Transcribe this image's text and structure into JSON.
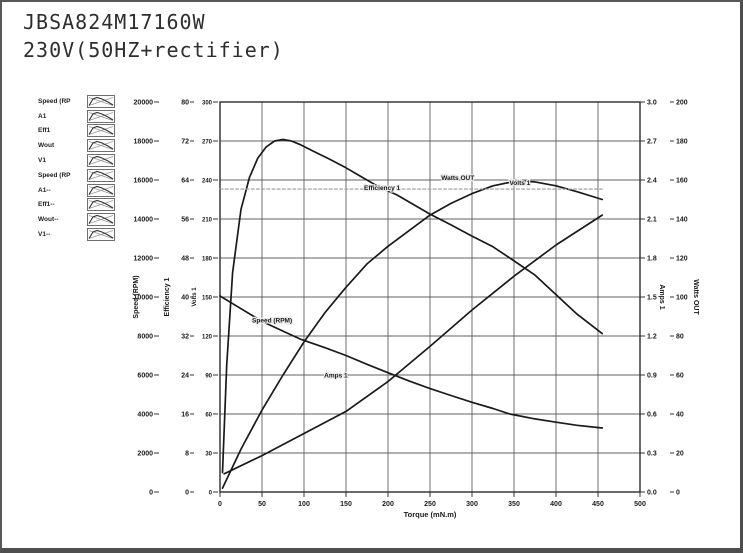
{
  "window": {
    "title_line1": "JBSA824M17160W",
    "title_line2": "230V(50HZ+rectifier)"
  },
  "legend": {
    "items": [
      {
        "label": "Speed (RP"
      },
      {
        "label": "A1"
      },
      {
        "label": "Eff1"
      },
      {
        "label": "Wout"
      },
      {
        "label": "V1"
      },
      {
        "label": "Speed (RP"
      },
      {
        "label": "A1--"
      },
      {
        "label": "Eff1--"
      },
      {
        "label": "Wout--"
      },
      {
        "label": "V1--"
      }
    ]
  },
  "colors": {
    "frame": "#4e4e4e",
    "grid": "#606060",
    "plot_border": "#2a2a2a",
    "curve": "#1a1a1a",
    "volts_line": "#9a9a9a",
    "tick_text": "#1a1a1a"
  },
  "chart_data": {
    "type": "line",
    "title": "",
    "xlabel": "Torque (mN.m)",
    "grid": true,
    "x_axis": {
      "min": 0,
      "max": 500,
      "step": 50,
      "decimals": 0
    },
    "y_axes_left": [
      {
        "name": "Speed (RPM)",
        "min": 0,
        "max": 20000,
        "step": 2000,
        "decimals": 0
      },
      {
        "name": "Efficiency 1",
        "min": 0,
        "max": 80,
        "step": 8,
        "decimals": 0
      },
      {
        "name": "Volts 1",
        "min": 0,
        "max": 300,
        "step": 30,
        "decimals": 0
      }
    ],
    "y_axes_right": [
      {
        "name": "Amps 1",
        "min": 0,
        "max": 3,
        "step": 0.3,
        "decimals": 1
      },
      {
        "name": "Watts OUT",
        "min": 0,
        "max": 200,
        "step": 20,
        "decimals": 0
      }
    ],
    "series": [
      {
        "name": "Speed (RPM)",
        "axis": "Speed (RPM)",
        "style": "solid",
        "points": [
          [
            0,
            10050
          ],
          [
            25,
            9400
          ],
          [
            50,
            8750
          ],
          [
            75,
            8250
          ],
          [
            95,
            7850
          ],
          [
            125,
            7400
          ],
          [
            150,
            7000
          ],
          [
            175,
            6550
          ],
          [
            200,
            6120
          ],
          [
            225,
            5700
          ],
          [
            250,
            5300
          ],
          [
            275,
            4950
          ],
          [
            300,
            4600
          ],
          [
            325,
            4280
          ],
          [
            345,
            4000
          ],
          [
            375,
            3750
          ],
          [
            400,
            3580
          ],
          [
            425,
            3420
          ],
          [
            455,
            3280
          ]
        ]
      },
      {
        "name": "Amps 1",
        "axis": "Amps 1",
        "style": "solid",
        "points": [
          [
            5,
            0.14
          ],
          [
            50,
            0.28
          ],
          [
            100,
            0.45
          ],
          [
            150,
            0.62
          ],
          [
            200,
            0.85
          ],
          [
            250,
            1.12
          ],
          [
            300,
            1.4
          ],
          [
            350,
            1.66
          ],
          [
            400,
            1.9
          ],
          [
            455,
            2.13
          ]
        ]
      },
      {
        "name": "Efficiency 1",
        "axis": "Efficiency 1",
        "style": "solid",
        "points": [
          [
            3,
            4
          ],
          [
            8,
            26
          ],
          [
            15,
            45
          ],
          [
            25,
            58
          ],
          [
            35,
            64.5
          ],
          [
            45,
            68.5
          ],
          [
            55,
            70.8
          ],
          [
            65,
            72
          ],
          [
            75,
            72.3
          ],
          [
            85,
            72
          ],
          [
            95,
            71.3
          ],
          [
            110,
            70
          ],
          [
            130,
            68.3
          ],
          [
            150,
            66.5
          ],
          [
            170,
            64.5
          ],
          [
            190,
            62.5
          ],
          [
            210,
            61
          ],
          [
            230,
            59
          ],
          [
            250,
            57
          ],
          [
            275,
            54.8
          ],
          [
            300,
            52.5
          ],
          [
            325,
            50.3
          ],
          [
            345,
            48
          ],
          [
            375,
            44.5
          ],
          [
            400,
            40.5
          ],
          [
            425,
            36.5
          ],
          [
            455,
            32.5
          ]
        ]
      },
      {
        "name": "Watts OUT",
        "axis": "Watts OUT",
        "style": "solid",
        "points": [
          [
            3,
            2
          ],
          [
            25,
            22
          ],
          [
            50,
            42
          ],
          [
            75,
            60
          ],
          [
            100,
            77
          ],
          [
            125,
            92
          ],
          [
            150,
            105
          ],
          [
            175,
            117
          ],
          [
            200,
            126
          ],
          [
            225,
            134
          ],
          [
            250,
            142
          ],
          [
            275,
            148
          ],
          [
            300,
            153
          ],
          [
            325,
            157
          ],
          [
            353,
            159.5
          ],
          [
            375,
            159
          ],
          [
            400,
            157
          ],
          [
            425,
            154
          ],
          [
            455,
            150
          ]
        ]
      },
      {
        "name": "Volts 1",
        "axis": "Volts 1",
        "style": "dashed",
        "points": [
          [
            0,
            233
          ],
          [
            455,
            233
          ]
        ]
      }
    ],
    "curve_labels": [
      {
        "text": "Speed (RPM)",
        "x": 62,
        "value": 8700,
        "axis": "Speed (RPM)"
      },
      {
        "text": "Amps 1",
        "x": 138,
        "value": 0.88,
        "axis": "Amps 1"
      },
      {
        "text": "Efficiency 1",
        "x": 193,
        "value": 62,
        "axis": "Efficiency 1"
      },
      {
        "text": "Watts OUT",
        "x": 283,
        "value": 160,
        "axis": "Watts OUT"
      },
      {
        "text": "Volts 1",
        "x": 357,
        "value": 236,
        "axis": "Volts 1"
      }
    ]
  }
}
